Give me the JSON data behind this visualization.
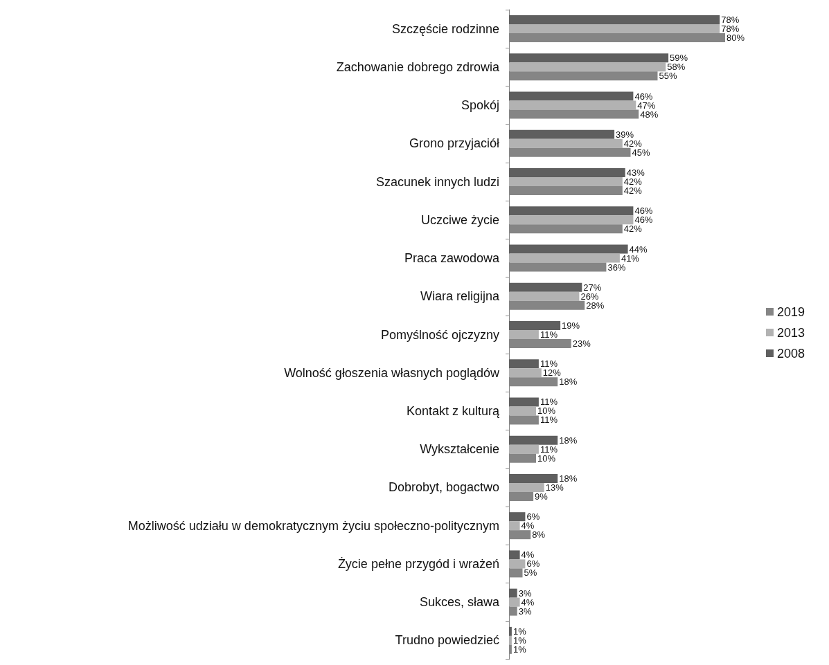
{
  "chart_data": {
    "type": "bar",
    "orientation": "horizontal",
    "legend": "right",
    "categories": [
      "Szczęście rodzinne",
      "Zachowanie dobrego zdrowia",
      "Spokój",
      "Grono przyjaciół",
      "Szacunek innych ludzi",
      "Uczciwe życie",
      "Praca zawodowa",
      "Wiara religijna",
      "Pomyślność ojczyzny",
      "Wolność głoszenia własnych poglądów",
      "Kontakt z kulturą",
      "Wykształcenie",
      "Dobrobyt, bogactwo",
      "Możliwość udziału w demokratycznym życiu społeczno-politycznym",
      "Życie pełne przygód i wrażeń",
      "Sukces, sława",
      "Trudno powiedzieć"
    ],
    "series": [
      {
        "name": "2008",
        "color": "#5f5f5f",
        "values": [
          78,
          59,
          46,
          39,
          43,
          46,
          44,
          27,
          19,
          11,
          11,
          18,
          18,
          6,
          4,
          3,
          1
        ],
        "value_labels": [
          "78%",
          "59%",
          "46%",
          "39%",
          "43%",
          "46%",
          "44%",
          "27%",
          "19%",
          "11%",
          "11%",
          "18%",
          "18%",
          "6%",
          "4%",
          "3%",
          "1%"
        ]
      },
      {
        "name": "2013",
        "color": "#b2b2b2",
        "values": [
          78,
          58,
          47,
          42,
          42,
          46,
          41,
          26,
          11,
          12,
          10,
          11,
          13,
          4,
          6,
          4,
          1
        ],
        "value_labels": [
          "78%",
          "58%",
          "47%",
          "42%",
          "42%",
          "46%",
          "41%",
          "26%",
          "11%",
          "12%",
          "10%",
          "11%",
          "13%",
          "4%",
          "6%",
          "4%",
          "1%"
        ]
      },
      {
        "name": "2019",
        "color": "#858585",
        "values": [
          80,
          55,
          48,
          45,
          42,
          42,
          36,
          28,
          23,
          18,
          11,
          10,
          9,
          8,
          5,
          3,
          1
        ],
        "value_labels": [
          "80%",
          "55%",
          "48%",
          "45%",
          "42%",
          "42%",
          "36%",
          "28%",
          "23%",
          "18%",
          "11%",
          "10%",
          "9%",
          "8%",
          "5%",
          "3%",
          "1%"
        ]
      }
    ]
  }
}
